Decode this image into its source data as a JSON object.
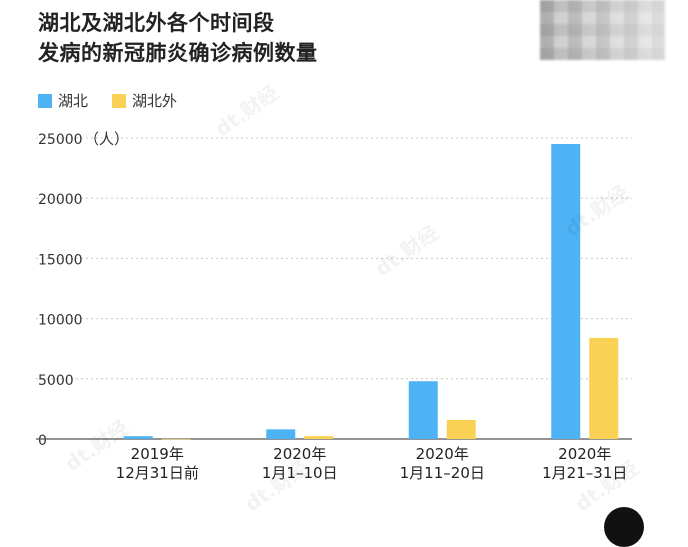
{
  "title": {
    "line1": "湖北及湖北外各个时间段",
    "line2": "发病的新冠肺炎确诊病例数量"
  },
  "watermark_text": "dt.财经",
  "chart_data": {
    "type": "bar",
    "categories": [
      [
        "2019年",
        "12月31日前"
      ],
      [
        "2020年",
        "1月1–10日"
      ],
      [
        "2020年",
        "1月11–20日"
      ],
      [
        "2020年",
        "1月21–31日"
      ]
    ],
    "series": [
      {
        "name": "湖北",
        "color": "#4db3f5",
        "values": [
          230,
          800,
          4800,
          24500
        ]
      },
      {
        "name": "湖北外",
        "color": "#f8d155",
        "values": [
          10,
          240,
          1580,
          8400
        ]
      }
    ],
    "yunit": "（人）",
    "ylim": [
      0,
      25000
    ],
    "yticks": [
      0,
      5000,
      10000,
      15000,
      20000,
      25000
    ],
    "grid": true,
    "legend_position": "top-left"
  }
}
